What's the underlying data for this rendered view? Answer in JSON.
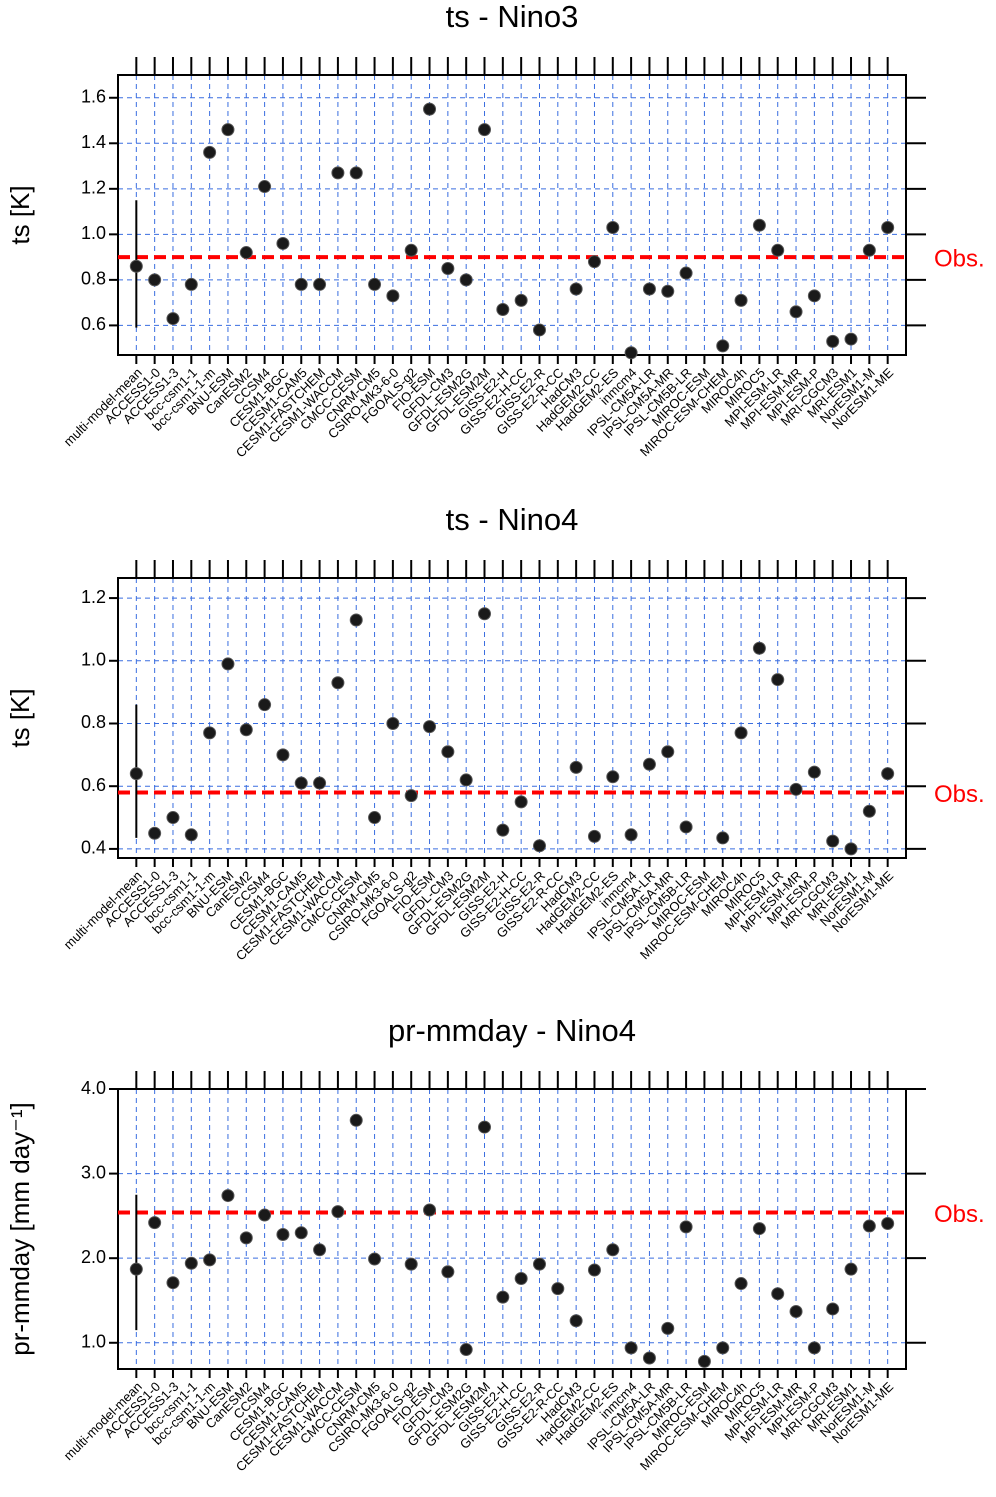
{
  "chart_data": [
    {
      "type": "scatter",
      "title": "ts - Nino3",
      "ylabel": "ts [K]",
      "categories": [
        "multi-model-mean",
        "ACCESS1-0",
        "ACCESS1-3",
        "bcc-csm1-1",
        "bcc-csm1-1-m",
        "BNU-ESM",
        "CanESM2",
        "CCSM4",
        "CESM1-BGC",
        "CESM1-CAM5",
        "CESM1-FASTCHEM",
        "CESM1-WACCM",
        "CMCC-CESM",
        "CNRM-CM5",
        "CSIRO-Mk3-6-0",
        "FGOALS-g2",
        "FIO-ESM",
        "GFDL-CM3",
        "GFDL-ESM2G",
        "GFDL-ESM2M",
        "GISS-E2-H",
        "GISS-E2-H-CC",
        "GISS-E2-R",
        "GISS-E2-R-CC",
        "HadCM3",
        "HadGEM2-CC",
        "HadGEM2-ES",
        "inmcm4",
        "IPSL-CM5A-LR",
        "IPSL-CM5A-MR",
        "IPSL-CM5B-LR",
        "MIROC-ESM",
        "MIROC-ESM-CHEM",
        "MIROC4h",
        "MIROC5",
        "MPI-ESM-LR",
        "MPI-ESM-MR",
        "MPI-ESM-P",
        "MRI-CGCM3",
        "MRI-ESM1",
        "NorESM1-M",
        "NorESM1-ME"
      ],
      "values": [
        0.86,
        0.8,
        0.63,
        0.78,
        1.36,
        1.46,
        0.92,
        1.21,
        0.96,
        0.78,
        0.78,
        1.27,
        1.27,
        0.78,
        0.73,
        0.93,
        1.55,
        0.85,
        0.8,
        1.46,
        0.67,
        0.71,
        0.58,
        null,
        0.76,
        0.88,
        1.03,
        0.48,
        0.76,
        0.75,
        0.83,
        null,
        0.51,
        0.71,
        1.04,
        0.93,
        0.66,
        0.73,
        0.53,
        0.54,
        0.93,
        1.03
      ],
      "color": "#1a1a1a",
      "error_bar": [
        0.59,
        1.15
      ],
      "obs": {
        "value": 0.9,
        "label": "Obs.",
        "color": "#ff0000"
      },
      "ylim": [
        0.47,
        1.7
      ],
      "yticks": [
        0.6,
        0.8,
        {
          "value": 1,
          "label": "1.0"
        },
        1.2,
        1.4,
        1.6
      ],
      "grid": true
    },
    {
      "type": "scatter",
      "title": "ts - Nino4",
      "ylabel": "ts [K]",
      "categories": [
        "multi-model-mean",
        "ACCESS1-0",
        "ACCESS1-3",
        "bcc-csm1-1",
        "bcc-csm1-1-m",
        "BNU-ESM",
        "CanESM2",
        "CCSM4",
        "CESM1-BGC",
        "CESM1-CAM5",
        "CESM1-FASTCHEM",
        "CESM1-WACCM",
        "CMCC-CESM",
        "CNRM-CM5",
        "CSIRO-Mk3-6-0",
        "FGOALS-g2",
        "FIO-ESM",
        "GFDL-CM3",
        "GFDL-ESM2G",
        "GFDL-ESM2M",
        "GISS-E2-H",
        "GISS-E2-H-CC",
        "GISS-E2-R",
        "GISS-E2-R-CC",
        "HadCM3",
        "HadGEM2-CC",
        "HadGEM2-ES",
        "inmcm4",
        "IPSL-CM5A-LR",
        "IPSL-CM5A-MR",
        "IPSL-CM5B-LR",
        "MIROC-ESM",
        "MIROC-ESM-CHEM",
        "MIROC4h",
        "MIROC5",
        "MPI-ESM-LR",
        "MPI-ESM-MR",
        "MPI-ESM-P",
        "MRI-CGCM3",
        "MRI-ESM1",
        "NorESM1-M",
        "NorESM1-ME"
      ],
      "values": [
        0.64,
        0.45,
        0.5,
        0.445,
        0.77,
        0.99,
        0.78,
        0.86,
        0.7,
        0.61,
        0.61,
        0.93,
        1.13,
        0.5,
        0.8,
        0.57,
        0.79,
        0.71,
        0.62,
        1.15,
        0.46,
        0.55,
        0.41,
        null,
        0.66,
        0.44,
        0.63,
        0.445,
        0.67,
        0.71,
        0.47,
        null,
        0.435,
        0.77,
        1.04,
        0.94,
        0.59,
        0.645,
        0.425,
        0.4,
        0.52,
        0.64
      ],
      "color": "#1a1a1a",
      "error_bar": [
        0.435,
        0.86
      ],
      "obs": {
        "value": 0.58,
        "label": "Obs.",
        "color": "#ff0000"
      },
      "ylim": [
        0.371,
        1.264
      ],
      "yticks": [
        0.4,
        0.6,
        0.8,
        {
          "value": 1,
          "label": "1.0"
        },
        1.2
      ],
      "grid": true
    },
    {
      "type": "scatter",
      "title": "pr-mmday - Nino4",
      "ylabel": "pr-mmday [mm day⁻¹]",
      "categories": [
        "multi-model-mean",
        "ACCESS1-0",
        "ACCESS1-3",
        "bcc-csm1-1",
        "bcc-csm1-1-m",
        "BNU-ESM",
        "CanESM2",
        "CCSM4",
        "CESM1-BGC",
        "CESM1-CAM5",
        "CESM1-FASTCHEM",
        "CESM1-WACCM",
        "CMCC-CESM",
        "CNRM-CM5",
        "CSIRO-Mk3-6-0",
        "FGOALS-g2",
        "FIO-ESM",
        "GFDL-CM3",
        "GFDL-ESM2G",
        "GFDL-ESM2M",
        "GISS-E2-H",
        "GISS-E2-H-CC",
        "GISS-E2-R",
        "GISS-E2-R-CC",
        "HadCM3",
        "HadGEM2-CC",
        "HadGEM2-ES",
        "inmcm4",
        "IPSL-CM5A-LR",
        "IPSL-CM5A-MR",
        "IPSL-CM5B-LR",
        "MIROC-ESM",
        "MIROC-ESM-CHEM",
        "MIROC4h",
        "MIROC5",
        "MPI-ESM-LR",
        "MPI-ESM-MR",
        "MPI-ESM-P",
        "MRI-CGCM3",
        "MRI-ESM1",
        "NorESM1-M",
        "NorESM1-ME"
      ],
      "values": [
        1.87,
        2.42,
        1.71,
        1.94,
        1.98,
        2.74,
        2.24,
        2.51,
        2.28,
        2.3,
        2.1,
        2.55,
        3.63,
        1.99,
        null,
        1.93,
        2.57,
        1.84,
        0.92,
        3.55,
        1.54,
        1.76,
        1.93,
        1.64,
        1.26,
        1.86,
        2.1,
        0.94,
        0.82,
        1.17,
        2.37,
        0.78,
        0.94,
        1.7,
        2.35,
        1.58,
        1.37,
        0.94,
        1.4,
        1.87,
        2.38,
        2.41
      ],
      "color": "#1a1a1a",
      "error_bar": [
        1.15,
        2.75
      ],
      "obs": {
        "value": 2.54,
        "label": "Obs.",
        "color": "#ff0000"
      },
      "ylim": [
        0.69,
        4.0
      ],
      "yticks": [
        {
          "value": 1,
          "label": "1.0"
        },
        {
          "value": 2,
          "label": "2.0"
        },
        {
          "value": 3,
          "label": "3.0"
        },
        {
          "value": 4,
          "label": "4.0"
        }
      ],
      "grid": true
    }
  ]
}
